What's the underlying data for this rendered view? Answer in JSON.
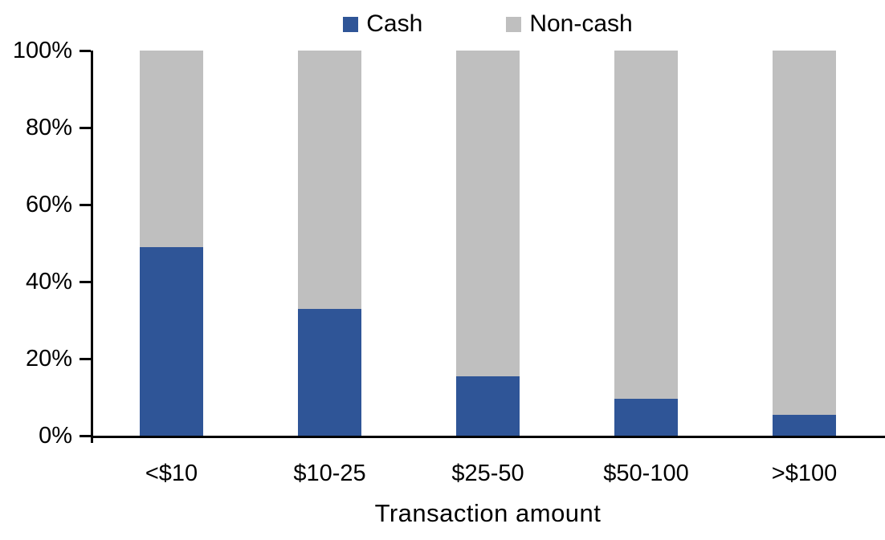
{
  "chart_data": {
    "type": "bar",
    "stacked": true,
    "orientation": "vertical",
    "categories": [
      "<$10",
      "$10-25",
      "$25-50",
      "$50-100",
      ">$100"
    ],
    "series": [
      {
        "name": "Cash",
        "color": "#2F5597",
        "values": [
          49,
          33,
          15.5,
          9.5,
          5.5
        ]
      },
      {
        "name": "Non-cash",
        "color": "#BFBFBF",
        "values": [
          51,
          67,
          84.5,
          90.5,
          94.5
        ]
      }
    ],
    "title": "",
    "xlabel": "Transaction amount",
    "ylabel": "",
    "y_ticks": [
      "0%",
      "20%",
      "40%",
      "60%",
      "80%",
      "100%"
    ],
    "y_tick_values": [
      0,
      20,
      40,
      60,
      80,
      100
    ],
    "ylim": [
      0,
      100
    ],
    "grid": false,
    "legend_position": "top",
    "axis_color": "#000000",
    "background_color": "#FFFFFF"
  }
}
